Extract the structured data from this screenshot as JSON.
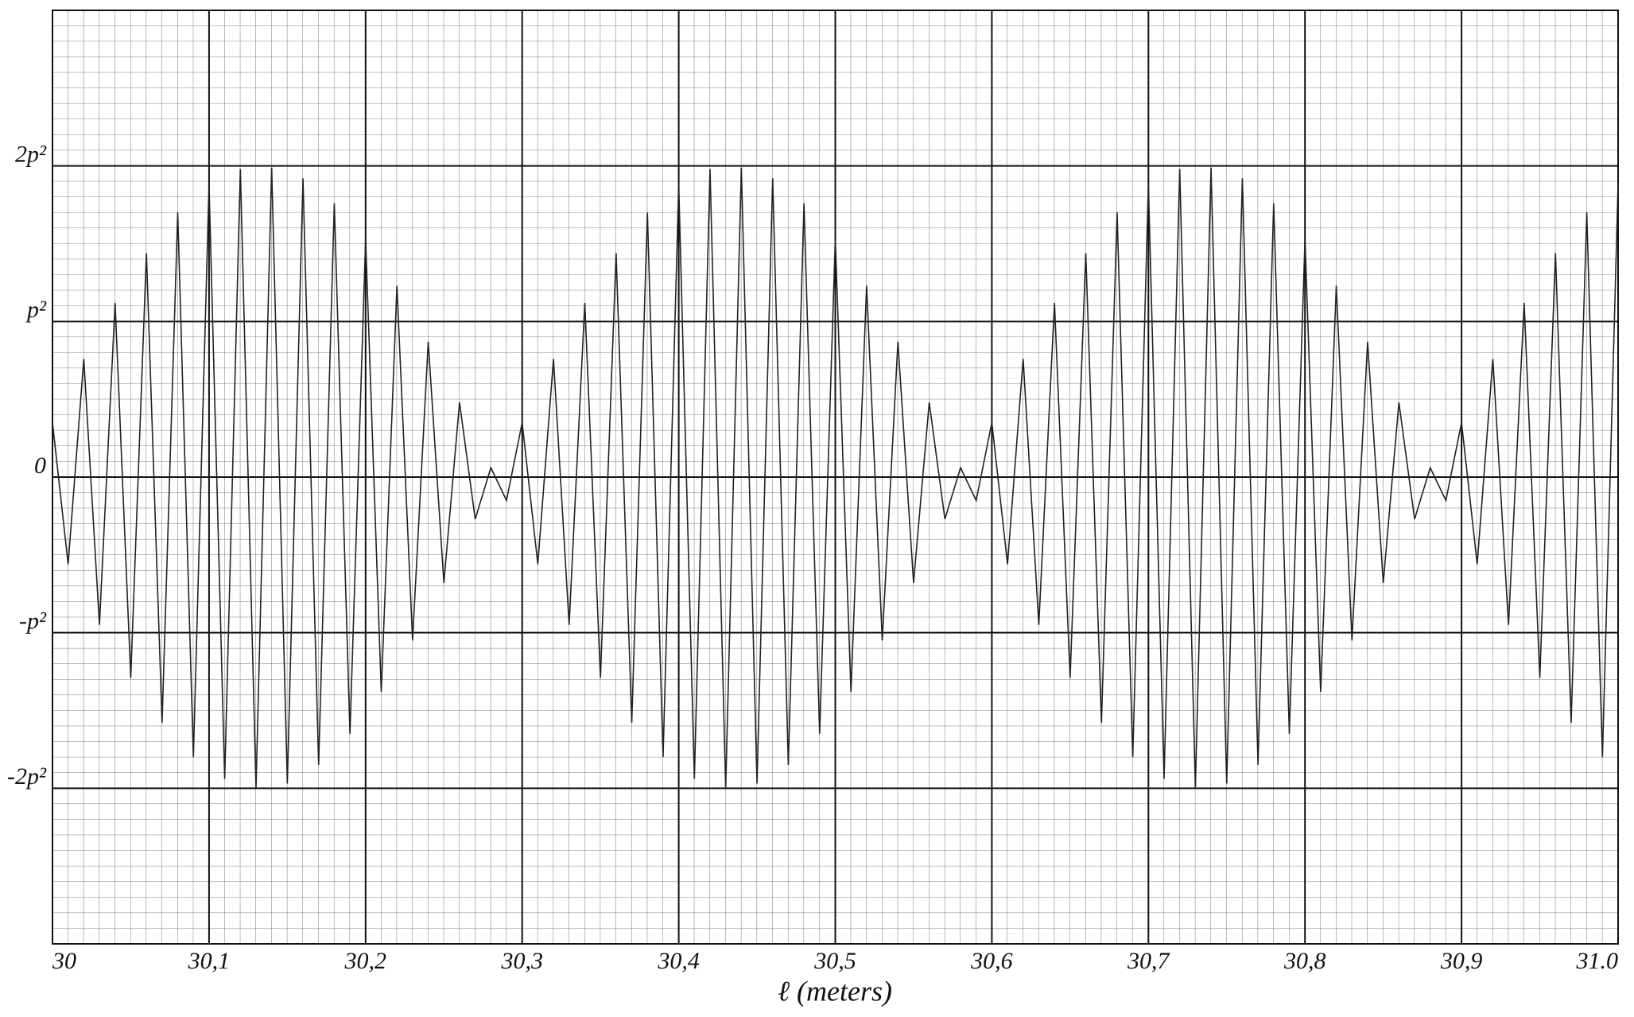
{
  "chart_data": {
    "type": "line",
    "x_label": "ℓ (meters)",
    "x": [
      30,
      30.01,
      30.02,
      30.03,
      30.04,
      30.05,
      30.06,
      30.07,
      30.08,
      30.09,
      30.1,
      30.11,
      30.12,
      30.13,
      30.14,
      30.15,
      30.16,
      30.17,
      30.18,
      30.19,
      30.2,
      30.21,
      30.22,
      30.23,
      30.24,
      30.25,
      30.26,
      30.27,
      30.28,
      30.29,
      30.3,
      30.31,
      30.32,
      30.33,
      30.34,
      30.35,
      30.36,
      30.37,
      30.38,
      30.39,
      30.4,
      30.41,
      30.42,
      30.43,
      30.44,
      30.45,
      30.46,
      30.47,
      30.48,
      30.49,
      30.5,
      30.51,
      30.52,
      30.53,
      30.54,
      30.55,
      30.56,
      30.57,
      30.58,
      30.59,
      30.6,
      30.61,
      30.62,
      30.63,
      30.64,
      30.65,
      30.66,
      30.67,
      30.68,
      30.69,
      30.7,
      30.71,
      30.72,
      30.73,
      30.74,
      30.75,
      30.76,
      30.77,
      30.78,
      30.79,
      30.8,
      30.81,
      30.82,
      30.83,
      30.84,
      30.85,
      30.86,
      30.87,
      30.88,
      30.89,
      30.9,
      30.91,
      30.92,
      30.93,
      30.94,
      30.95,
      30.96,
      30.97,
      30.98,
      30.99,
      31
    ],
    "series": [
      {
        "color": "#222222",
        "values": [
          0.35,
          -0.56,
          0.76,
          -0.95,
          1.12,
          -1.29,
          1.44,
          -1.58,
          1.7,
          -1.8,
          1.88,
          -1.94,
          1.98,
          -2,
          1.99,
          -1.97,
          1.92,
          -1.85,
          1.76,
          -1.65,
          1.53,
          -1.38,
          1.23,
          -1.05,
          0.87,
          -0.68,
          0.48,
          -0.27,
          0.06,
          -0.15,
          0.35,
          -0.56,
          0.76,
          -0.95,
          1.12,
          -1.29,
          1.44,
          -1.58,
          1.7,
          -1.8,
          1.88,
          -1.94,
          1.98,
          -2,
          1.99,
          -1.97,
          1.92,
          -1.85,
          1.76,
          -1.65,
          1.53,
          -1.38,
          1.23,
          -1.05,
          0.87,
          -0.68,
          0.48,
          -0.27,
          0.06,
          -0.15,
          0.35,
          -0.56,
          0.76,
          -0.95,
          1.12,
          -1.29,
          1.44,
          -1.58,
          1.7,
          -1.8,
          1.88,
          -1.94,
          1.98,
          -2,
          1.99,
          -1.97,
          1.92,
          -1.85,
          1.76,
          -1.65,
          1.53,
          -1.38,
          1.23,
          -1.05,
          0.87,
          -0.68,
          0.48,
          -0.27,
          0.06,
          -0.15,
          0.35,
          -0.56,
          0.76,
          -0.95,
          1.12,
          -1.29,
          1.44,
          -1.58,
          1.7,
          -1.8,
          1.88
        ]
      }
    ],
    "xlim": [
      30,
      31
    ],
    "xticks": [
      30,
      {
        "value": 30.1,
        "label": "30,1"
      },
      {
        "value": 30.2,
        "label": "30,2"
      },
      {
        "value": 30.3,
        "label": "30,3"
      },
      {
        "value": 30.4,
        "label": "30,4"
      },
      {
        "value": 30.5,
        "label": "30,5"
      },
      {
        "value": 30.6,
        "label": "30,6"
      },
      {
        "value": 30.7,
        "label": "30,7"
      },
      {
        "value": 30.8,
        "label": "30,8"
      },
      {
        "value": 30.9,
        "label": "30,9"
      },
      {
        "value": 31,
        "label": "31.0"
      }
    ],
    "ylim": [
      -3,
      3
    ],
    "yticks": [
      {
        "value": -2,
        "label": "-2p²"
      },
      {
        "value": -1,
        "label": "-p²"
      },
      0,
      {
        "value": 1,
        "label": "p²"
      },
      {
        "value": 2,
        "label": "2p²"
      }
    ],
    "grid": true
  }
}
